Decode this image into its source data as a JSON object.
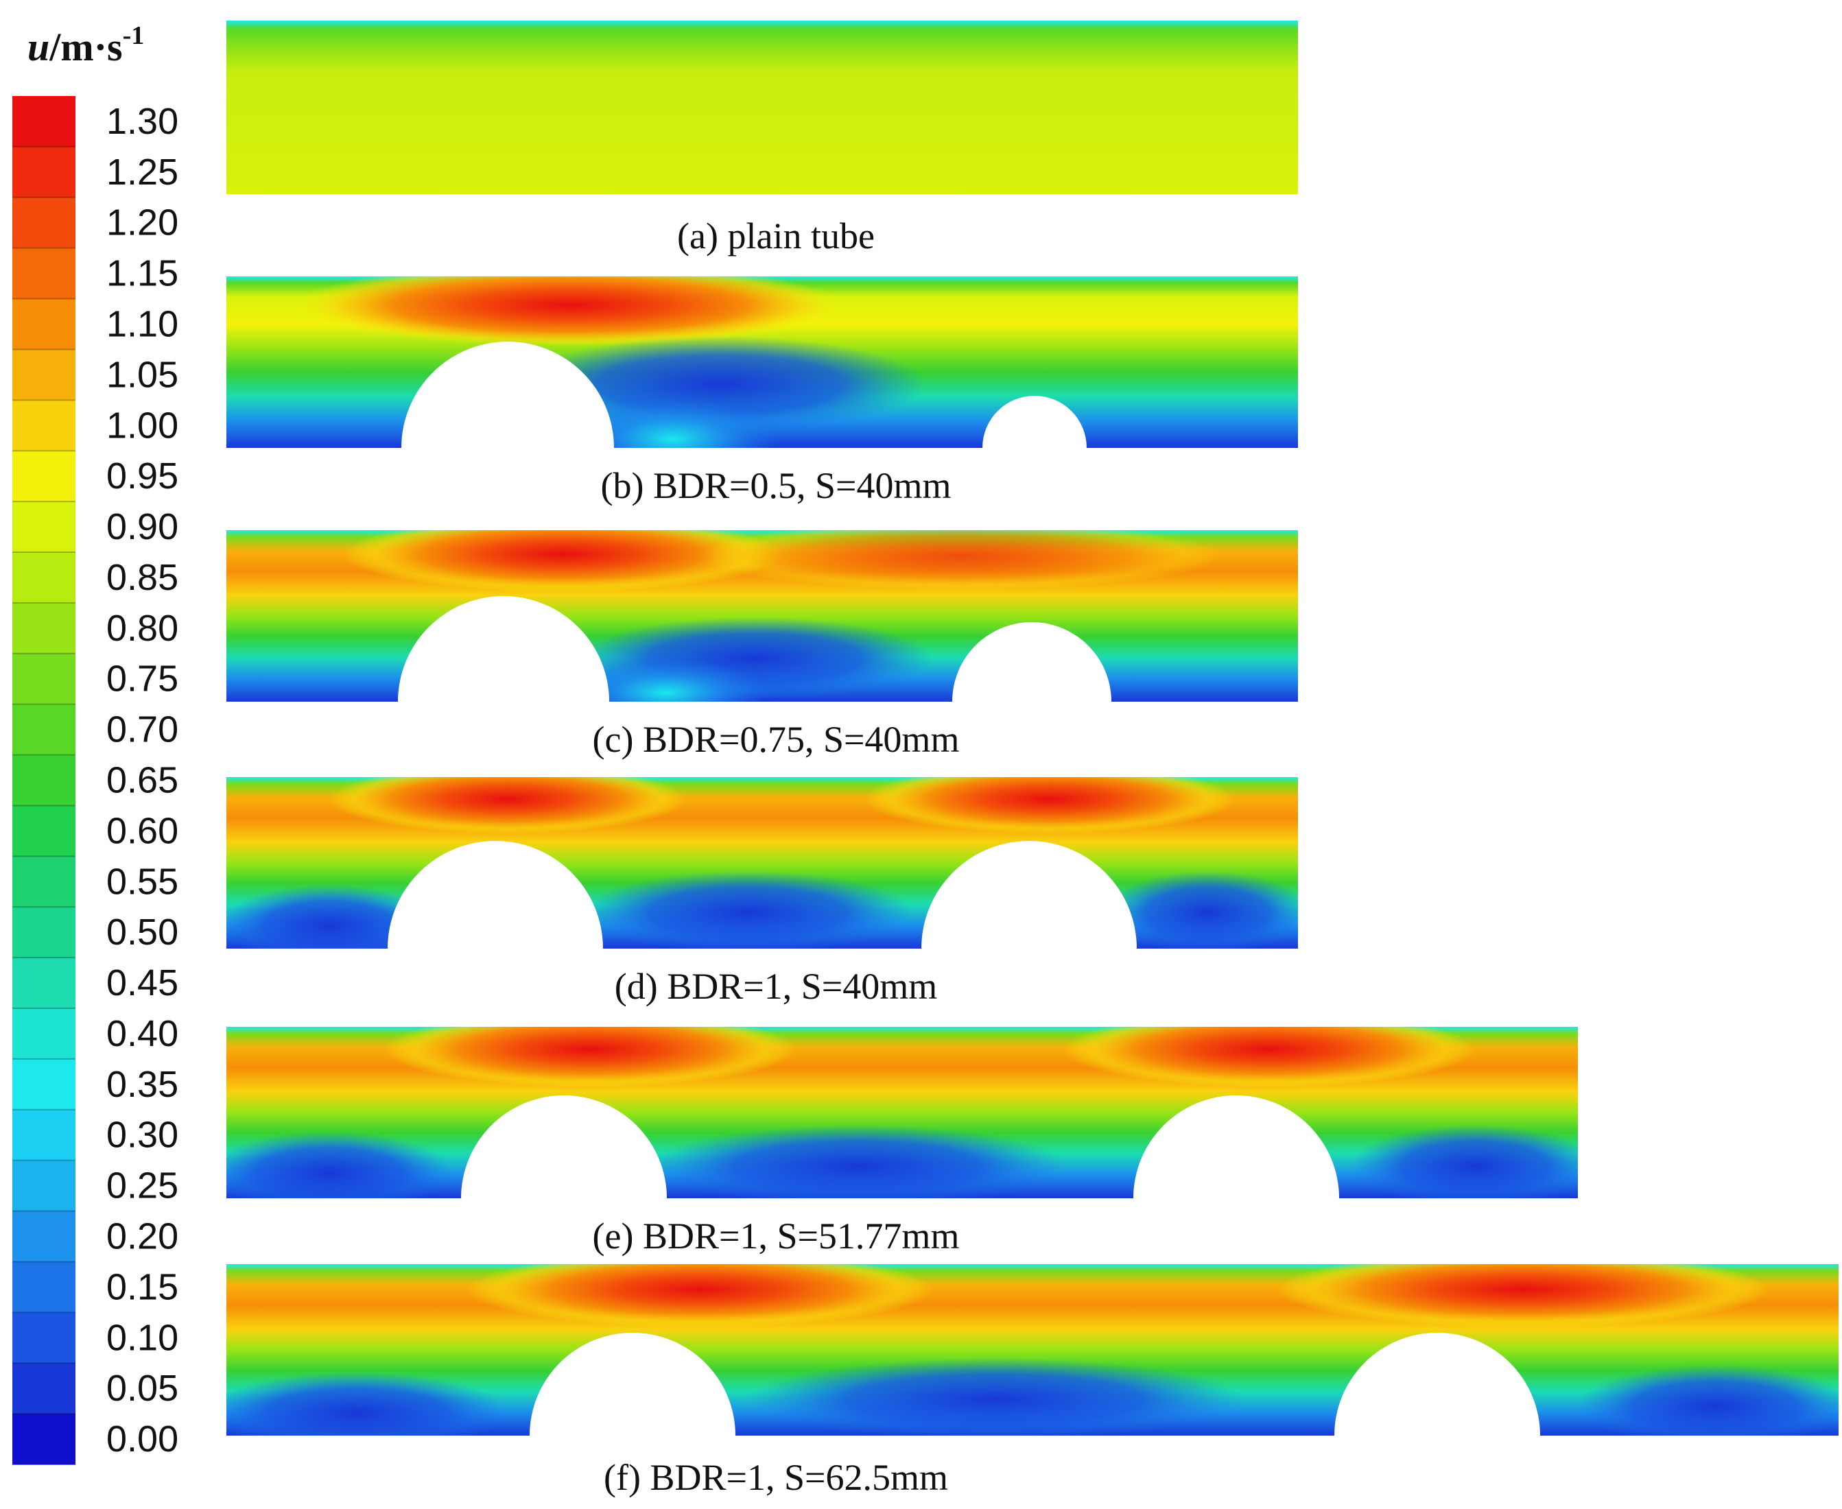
{
  "colorbar": {
    "title_var": "u",
    "title_unit": "/m·s",
    "title_exp": "-1",
    "ticks": [
      "1.30",
      "1.25",
      "1.20",
      "1.15",
      "1.10",
      "1.05",
      "1.00",
      "0.95",
      "0.90",
      "0.85",
      "0.80",
      "0.75",
      "0.70",
      "0.65",
      "0.60",
      "0.55",
      "0.50",
      "0.45",
      "0.40",
      "0.35",
      "0.30",
      "0.25",
      "0.20",
      "0.15",
      "0.10",
      "0.05",
      "0.00"
    ],
    "colors": [
      "#e81010",
      "#f02a0c",
      "#f24a0a",
      "#f46a08",
      "#f68e08",
      "#f8b00a",
      "#f9d20e",
      "#f4f20a",
      "#d8f20a",
      "#b8ec10",
      "#98e416",
      "#78dc1e",
      "#58d826",
      "#38d032",
      "#22d050",
      "#1ed270",
      "#1cd690",
      "#1cdcb0",
      "#1ce4d0",
      "#1ce8ee",
      "#1cd0f4",
      "#1cb2f0",
      "#1c92ec",
      "#1c74e8",
      "#1a56e2",
      "#1838d8",
      "#1010cc"
    ]
  },
  "panels": [
    {
      "caption": "(a) plain tube"
    },
    {
      "caption": "(b) BDR=0.5, S=40mm"
    },
    {
      "caption": "(c) BDR=0.75, S=40mm"
    },
    {
      "caption": "(d) BDR=1, S=40mm"
    },
    {
      "caption": "(e) BDR=1, S=51.77mm"
    },
    {
      "caption": "(f) BDR=1, S=62.5mm"
    }
  ]
}
